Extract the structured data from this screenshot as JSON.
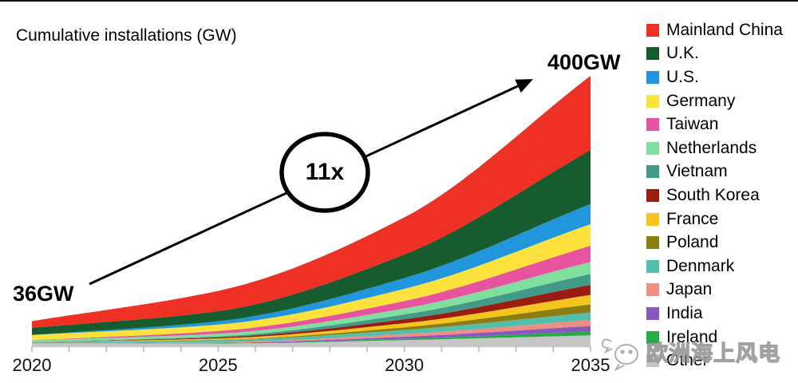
{
  "chart": {
    "title": "Cumulative installations (GW)"
  },
  "annotations": {
    "start_label": "36GW",
    "end_label": "400GW",
    "multiplier": "11x"
  },
  "watermark": {
    "text": "欧洲海上风电"
  },
  "chart_data": {
    "type": "area",
    "stacked": true,
    "title": "Cumulative installations (GW)",
    "xlabel": "",
    "ylabel": "Cumulative installations (GW)",
    "x": [
      2020,
      2025,
      2030,
      2035
    ],
    "x_tick_labels": [
      "2020",
      "2025",
      "2030",
      "2035"
    ],
    "x_range": [
      2020,
      2035
    ],
    "x_minor_tick_interval": 1,
    "ylim": [
      0,
      400
    ],
    "grid": false,
    "legend_position": "right",
    "totals_gw": [
      36,
      81,
      190,
      400
    ],
    "series": [
      {
        "name": "Mainland China",
        "color": "#ee3124",
        "values": [
          10.0,
          30.0,
          55,
          110
        ]
      },
      {
        "name": "U.K.",
        "color": "#175c2e",
        "values": [
          10.5,
          15.0,
          35,
          80
        ]
      },
      {
        "name": "U.S.",
        "color": "#2196dc",
        "values": [
          0.1,
          5.0,
          16,
          30
        ]
      },
      {
        "name": "Germany",
        "color": "#fde23d",
        "values": [
          7.7,
          9.5,
          18,
          32
        ]
      },
      {
        "name": "Taiwan",
        "color": "#e7539e",
        "values": [
          0.1,
          4.0,
          11,
          24
        ]
      },
      {
        "name": "Netherlands",
        "color": "#7fdf9f",
        "values": [
          2.6,
          4.0,
          9,
          18
        ]
      },
      {
        "name": "Vietnam",
        "color": "#449a88",
        "values": [
          0.1,
          1.5,
          7,
          16
        ]
      },
      {
        "name": "South Korea",
        "color": "#9a1d12",
        "values": [
          0.1,
          1.5,
          6,
          15
        ]
      },
      {
        "name": "France",
        "color": "#f6c41f",
        "values": [
          0.0,
          2.0,
          6,
          14
        ]
      },
      {
        "name": "Poland",
        "color": "#8c7d12",
        "values": [
          0.1,
          0.5,
          4,
          12
        ]
      },
      {
        "name": "Denmark",
        "color": "#52bfab",
        "values": [
          1.7,
          3.0,
          6,
          11
        ]
      },
      {
        "name": "Japan",
        "color": "#f08d85",
        "values": [
          0.1,
          1.0,
          4,
          9
        ]
      },
      {
        "name": "India",
        "color": "#8a56c0",
        "values": [
          0.0,
          0.5,
          3,
          8
        ]
      },
      {
        "name": "Ireland",
        "color": "#27ab47",
        "values": [
          0.0,
          0.5,
          2,
          6
        ]
      },
      {
        "name": "Other",
        "color": "#c6c6c6",
        "values": [
          3.0,
          3.0,
          8,
          15
        ]
      }
    ],
    "axis_colors": {
      "axis_line": "#c8c8c8",
      "tick": "#b4b4b4",
      "tick_label": "#111111"
    },
    "annotations": {
      "start_value_gw": 36,
      "end_value_gw": 400,
      "growth_multiple": "11x"
    }
  }
}
